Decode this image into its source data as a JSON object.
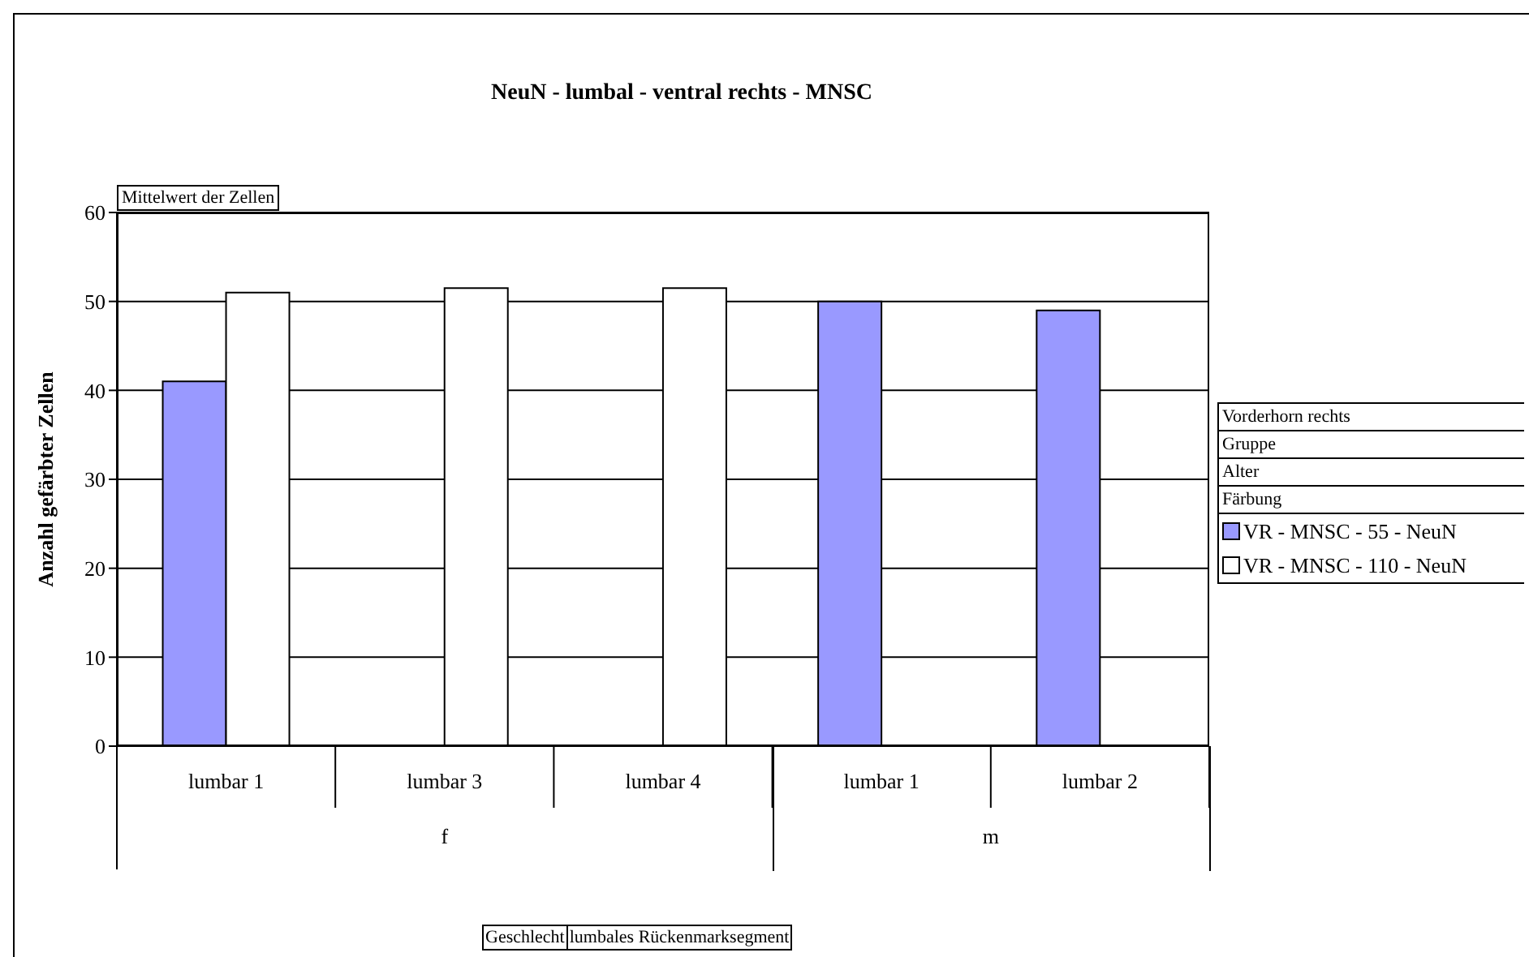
{
  "chart_data": {
    "type": "bar",
    "title": "NeuN -  lumbal - ventral rechts - MNSC",
    "ylabel": "Anzahl gefärbter Zellen",
    "categories": [
      "lumbar 1",
      "lumbar 3",
      "lumbar 4",
      "lumbar 1",
      "lumbar 2"
    ],
    "series": [
      {
        "name": "VR - MNSC - 55 - NeuN",
        "color": "#9999ff",
        "values": [
          41,
          null,
          null,
          50,
          49
        ]
      },
      {
        "name": "VR - MNSC - 110 - NeuN",
        "color": "#ffffff",
        "values": [
          51,
          51.5,
          51.5,
          null,
          null
        ]
      }
    ],
    "ylim": [
      0,
      60
    ],
    "yticks": [
      0,
      10,
      20,
      30,
      40,
      50,
      60
    ],
    "grid": "y",
    "legend": "right",
    "annotations": [
      "Mittelwert der Zellen",
      "f",
      "m",
      "Geschlecht",
      "lumbales Rückenmarksegment",
      "Vorderhorn rechts",
      "Gruppe",
      "Alter",
      "Färbung"
    ]
  }
}
